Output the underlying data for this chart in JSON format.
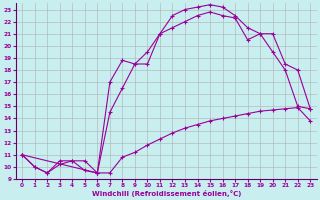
{
  "xlabel": "Windchill (Refroidissement éolien,°C)",
  "background_color": "#c8eef0",
  "grid_color": "#b0b0b0",
  "line_color": "#990099",
  "xlim": [
    -0.5,
    23.5
  ],
  "ylim": [
    9,
    23.5
  ],
  "xticks": [
    0,
    1,
    2,
    3,
    4,
    5,
    6,
    7,
    8,
    9,
    10,
    11,
    12,
    13,
    14,
    15,
    16,
    17,
    18,
    19,
    20,
    21,
    22,
    23
  ],
  "yticks": [
    9,
    10,
    11,
    12,
    13,
    14,
    15,
    16,
    17,
    18,
    19,
    20,
    21,
    22,
    23
  ],
  "line1_x": [
    0,
    1,
    2,
    3,
    4,
    5,
    6,
    7,
    8,
    9,
    10,
    11,
    12,
    13,
    14,
    15,
    16,
    17,
    18,
    19,
    20,
    21,
    22,
    23
  ],
  "line1_y": [
    11,
    10,
    9.5,
    10.5,
    10.5,
    9.7,
    9.5,
    9.5,
    10.8,
    11.2,
    11.8,
    12.3,
    12.8,
    13.2,
    13.5,
    13.8,
    14.0,
    14.2,
    14.4,
    14.6,
    14.7,
    14.8,
    14.9,
    13.8
  ],
  "line2_x": [
    0,
    1,
    2,
    3,
    4,
    5,
    6,
    7,
    8,
    9,
    10,
    11,
    12,
    13,
    14,
    15,
    16,
    17,
    18,
    19,
    20,
    21,
    22,
    23
  ],
  "line2_y": [
    11,
    10,
    9.5,
    10.2,
    10.5,
    10.5,
    9.5,
    14.5,
    16.5,
    18.5,
    19.5,
    21.0,
    21.5,
    22.0,
    22.5,
    22.8,
    22.5,
    22.3,
    20.5,
    21.0,
    21.0,
    18.5,
    18.0,
    14.8
  ],
  "line3_x": [
    0,
    6,
    7,
    8,
    9,
    10,
    11,
    12,
    13,
    14,
    15,
    16,
    17,
    18,
    19,
    20,
    21,
    22,
    23
  ],
  "line3_y": [
    11,
    9.5,
    17.0,
    18.8,
    18.5,
    18.5,
    21.0,
    22.5,
    23.0,
    23.2,
    23.4,
    23.2,
    22.5,
    21.5,
    21.0,
    19.5,
    18.0,
    15.0,
    14.8
  ]
}
